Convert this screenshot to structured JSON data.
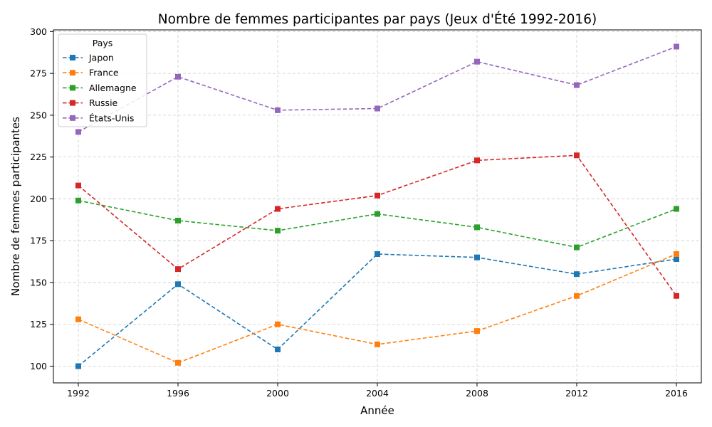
{
  "chart_data": {
    "type": "line",
    "title": "Nombre de femmes participantes par pays (Jeux d'Été 1992-2016)",
    "xlabel": "Année",
    "ylabel": "Nombre de femmes participantes",
    "x": [
      1992,
      1996,
      2000,
      2004,
      2008,
      2012,
      2016
    ],
    "x_ticks": [
      "1992",
      "1996",
      "2000",
      "2004",
      "2008",
      "2012",
      "2016"
    ],
    "xlim": [
      1991,
      2017
    ],
    "ylim": [
      90,
      301
    ],
    "y_ticks": [
      100,
      125,
      150,
      175,
      200,
      225,
      250,
      275,
      300
    ],
    "grid": true,
    "line_style": "dashed",
    "marker": "square",
    "legend": {
      "title": "Pays",
      "placement": "top-left"
    },
    "series": [
      {
        "name": "Japon",
        "color": "#1f77b4",
        "values": [
          100,
          149,
          110,
          167,
          165,
          155,
          164
        ]
      },
      {
        "name": "France",
        "color": "#ff7f0e",
        "values": [
          128,
          102,
          125,
          113,
          121,
          142,
          167
        ]
      },
      {
        "name": "Allemagne",
        "color": "#2ca02c",
        "values": [
          199,
          187,
          181,
          191,
          183,
          171,
          194
        ]
      },
      {
        "name": "Russie",
        "color": "#d62728",
        "values": [
          208,
          158,
          194,
          202,
          223,
          226,
          142
        ]
      },
      {
        "name": "États-Unis",
        "color": "#9467bd",
        "values": [
          240,
          273,
          253,
          254,
          282,
          268,
          291
        ]
      }
    ]
  }
}
